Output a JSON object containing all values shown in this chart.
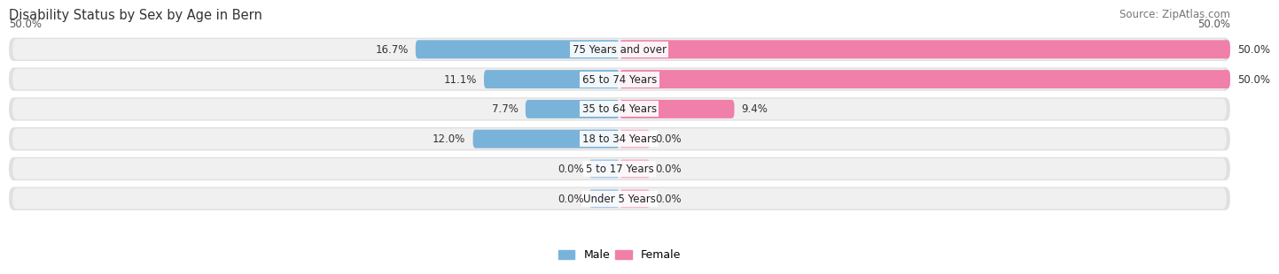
{
  "title": "Disability Status by Sex by Age in Bern",
  "source": "Source: ZipAtlas.com",
  "categories": [
    "Under 5 Years",
    "5 to 17 Years",
    "18 to 34 Years",
    "35 to 64 Years",
    "65 to 74 Years",
    "75 Years and over"
  ],
  "male_values": [
    0.0,
    0.0,
    12.0,
    7.7,
    11.1,
    16.7
  ],
  "female_values": [
    0.0,
    0.0,
    0.0,
    9.4,
    50.0,
    50.0
  ],
  "male_color": "#7ab3d9",
  "female_color": "#f07faa",
  "male_stub_color": "#a8c8e8",
  "female_stub_color": "#f4b8ce",
  "bar_bg_color": "#e0e0e0",
  "bar_bg_inner_color": "#f0f0f0",
  "xlim": 50.0,
  "title_fontsize": 10.5,
  "source_fontsize": 8.5,
  "label_fontsize": 8.5,
  "category_fontsize": 8.5
}
